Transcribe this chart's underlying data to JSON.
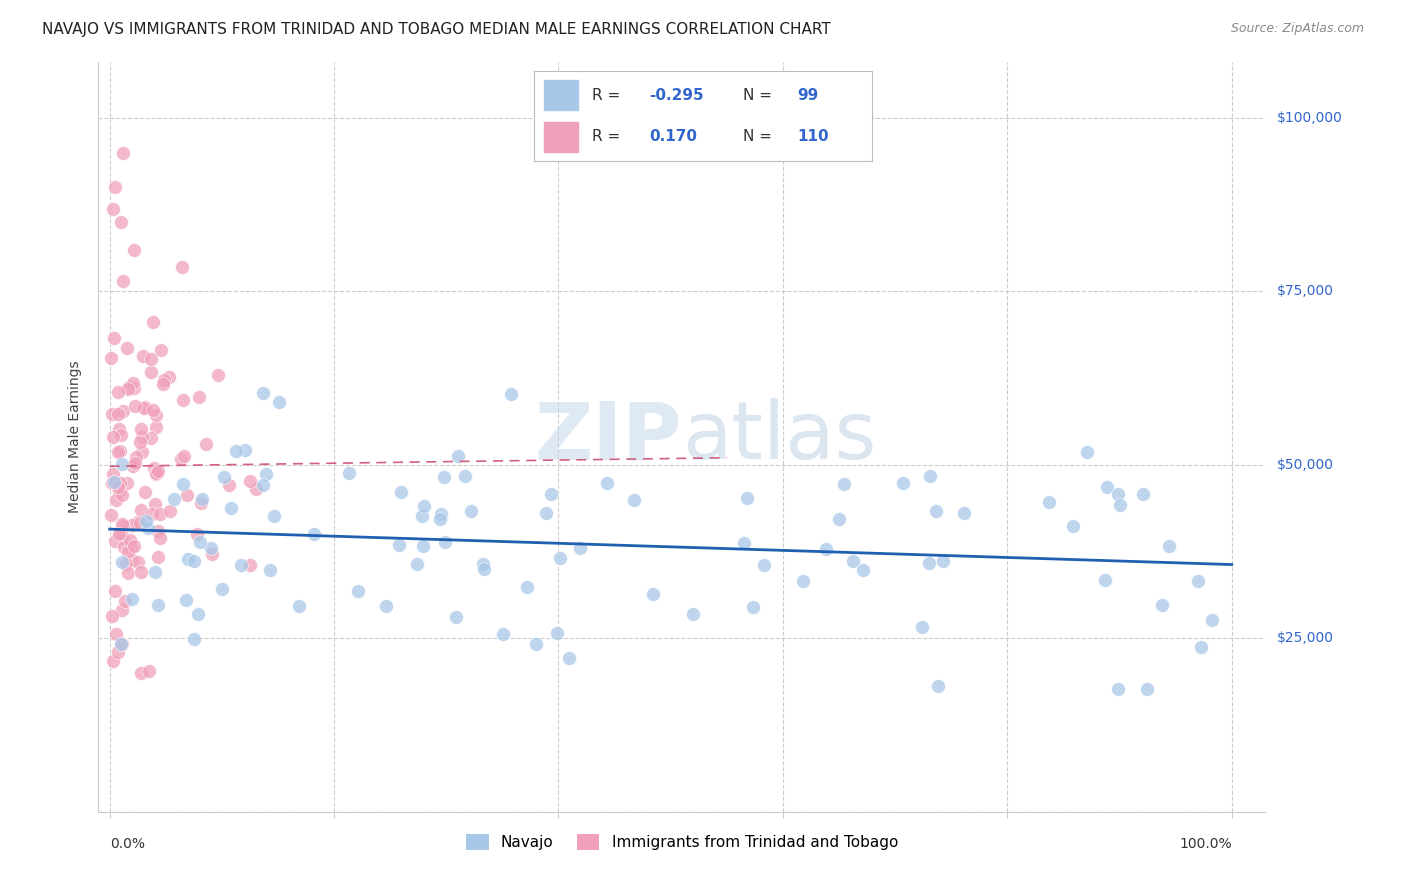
{
  "title": "NAVAJO VS IMMIGRANTS FROM TRINIDAD AND TOBAGO MEDIAN MALE EARNINGS CORRELATION CHART",
  "source": "Source: ZipAtlas.com",
  "ylabel": "Median Male Earnings",
  "navajo_R": -0.295,
  "navajo_N": 99,
  "tt_R": 0.17,
  "tt_N": 110,
  "navajo_color": "#a8c8e8",
  "tt_color": "#f0a0b8",
  "navajo_line_color": "#2060b0",
  "tt_line_color": "#d06080",
  "background_color": "#ffffff",
  "grid_color": "#cccccc",
  "y_ticks": [
    0,
    25000,
    50000,
    75000,
    100000
  ],
  "y_tick_labels": [
    "",
    "$25,000",
    "$50,000",
    "$75,000",
    "$100,000"
  ],
  "title_fontsize": 11,
  "tick_color": "#3366cc"
}
